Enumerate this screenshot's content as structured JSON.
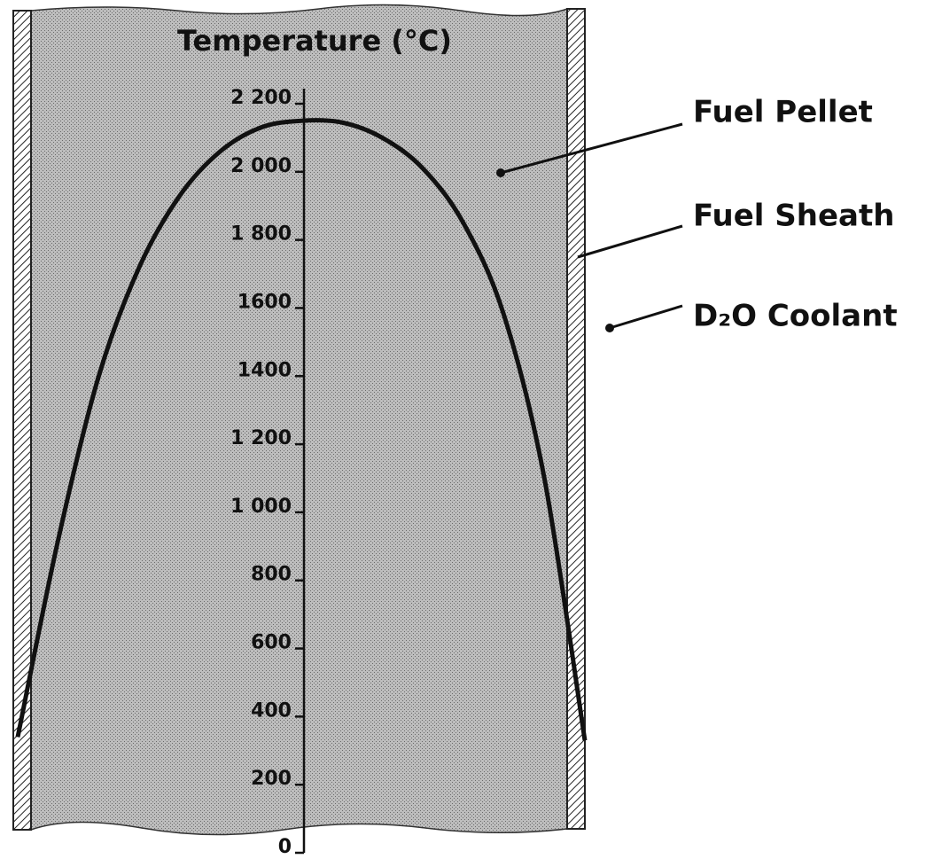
{
  "chart_data": {
    "type": "line",
    "title": "Temperature (°C)",
    "categories": [
      null,
      null,
      null,
      null,
      null,
      null,
      null,
      null,
      null,
      null,
      null,
      null,
      null,
      null,
      null
    ],
    "values": [
      340,
      920,
      1400,
      1720,
      1930,
      2060,
      2130,
      2150,
      2145,
      2100,
      2010,
      1850,
      1580,
      1100,
      330
    ],
    "color": "#111111",
    "ylim": [
      0,
      2200
    ],
    "yticks": [
      0,
      200,
      400,
      600,
      800,
      {
        "value": 1000,
        "label": "1 000"
      },
      {
        "value": 1200,
        "label": "1 200"
      },
      1400,
      1600,
      {
        "value": 1800,
        "label": "1 800"
      },
      {
        "value": 2000,
        "label": "2 000"
      },
      {
        "value": 2200,
        "label": "2 200"
      }
    ],
    "annotations": [
      "Fuel Pellet",
      "Fuel Sheath",
      "D₂O Coolant"
    ]
  }
}
